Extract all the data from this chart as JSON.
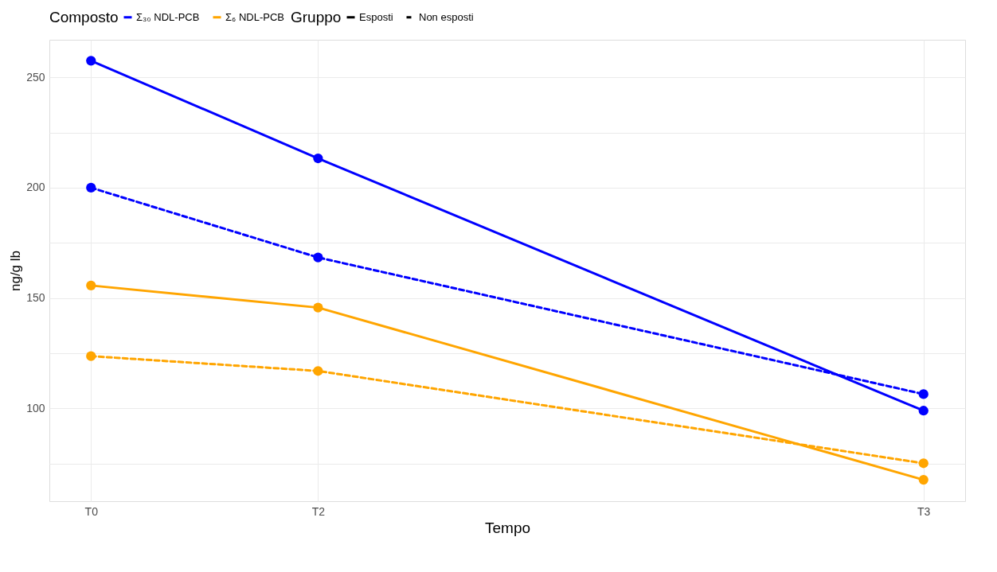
{
  "chart_data": {
    "type": "line",
    "xlabel": "Tempo",
    "ylabel": "ng/g lb",
    "legend_title": "Composto",
    "legend": "top",
    "grid": true,
    "marker": "circle",
    "annotations": [
      "Gruppo",
      "Esposti",
      "Non esposti"
    ],
    "categories": [
      "T0",
      null,
      null,
      "T2",
      null,
      null,
      null,
      null,
      null,
      null,
      null,
      "T3"
    ],
    "ylim": [
      58,
      267
    ],
    "yticks": [
      {
        "value": 75,
        "label": null
      },
      100,
      {
        "value": 125,
        "label": null
      },
      150,
      {
        "value": 175,
        "label": null
      },
      200,
      {
        "value": 225,
        "label": null
      },
      250
    ],
    "series": [
      {
        "name": "Σ₃₀ NDL-PCB",
        "color": "#0000ff",
        "line_style": "solid",
        "values": [
          257.5,
          null,
          null,
          213.3,
          null,
          null,
          null,
          null,
          null,
          null,
          null,
          99
        ]
      },
      {
        "color": "#0000ff",
        "line_style": "dashed",
        "values": [
          200,
          null,
          null,
          168.4,
          null,
          null,
          null,
          null,
          null,
          null,
          null,
          106.5
        ]
      },
      {
        "name": "Σ₆ NDL-PCB",
        "color": "#ffa500",
        "line_style": "solid",
        "values": [
          155.7,
          null,
          null,
          145.7,
          null,
          null,
          null,
          null,
          null,
          null,
          null,
          67.7
        ]
      },
      {
        "color": "#ffa500",
        "line_style": "dashed",
        "values": [
          123.7,
          null,
          null,
          117,
          null,
          null,
          null,
          null,
          null,
          null,
          null,
          75.2
        ]
      }
    ]
  }
}
